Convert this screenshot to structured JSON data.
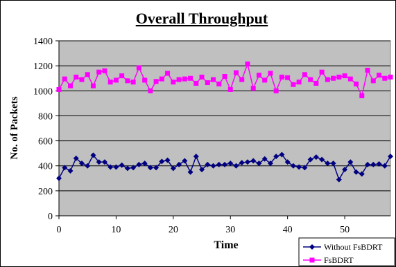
{
  "chart_data": {
    "type": "line",
    "title": "Overall Throughput",
    "xlabel": "Time",
    "ylabel": "No. of Packets",
    "xlim": [
      0,
      58
    ],
    "ylim": [
      0,
      1400
    ],
    "x_ticks": [
      0,
      10,
      20,
      30,
      40,
      50
    ],
    "y_ticks": [
      0,
      200,
      400,
      600,
      800,
      1000,
      1200,
      1400
    ],
    "grid": true,
    "legend_position": "bottom-right",
    "plot_background": "#c0c0c0",
    "series": [
      {
        "name": "Without FsBDRT",
        "color": "#000080",
        "marker": "diamond",
        "x": [
          0,
          1,
          2,
          3,
          4,
          5,
          6,
          7,
          8,
          9,
          10,
          11,
          12,
          13,
          14,
          15,
          16,
          17,
          18,
          19,
          20,
          21,
          22,
          23,
          24,
          25,
          26,
          27,
          28,
          29,
          30,
          31,
          32,
          33,
          34,
          35,
          36,
          37,
          38,
          39,
          40,
          41,
          42,
          43,
          44,
          45,
          46,
          47,
          48,
          49,
          50,
          51,
          52,
          53,
          54,
          55,
          56,
          57,
          58
        ],
        "values": [
          300,
          385,
          360,
          460,
          420,
          400,
          485,
          430,
          430,
          390,
          390,
          405,
          380,
          385,
          410,
          420,
          385,
          385,
          435,
          445,
          380,
          410,
          440,
          350,
          475,
          370,
          410,
          400,
          410,
          410,
          420,
          400,
          425,
          430,
          440,
          420,
          455,
          420,
          475,
          490,
          430,
          400,
          390,
          385,
          450,
          470,
          450,
          420,
          420,
          290,
          370,
          430,
          350,
          335,
          410,
          410,
          415,
          400,
          475
        ]
      },
      {
        "name": "FsBDRT",
        "color": "#ff00ff",
        "marker": "square",
        "x": [
          0,
          1,
          2,
          3,
          4,
          5,
          6,
          7,
          8,
          9,
          10,
          11,
          12,
          13,
          14,
          15,
          16,
          17,
          18,
          19,
          20,
          21,
          22,
          23,
          24,
          25,
          26,
          27,
          28,
          29,
          30,
          31,
          32,
          33,
          34,
          35,
          36,
          37,
          38,
          39,
          40,
          41,
          42,
          43,
          44,
          45,
          46,
          47,
          48,
          49,
          50,
          51,
          52,
          53,
          54,
          55,
          56,
          57,
          58
        ],
        "values": [
          1010,
          1095,
          1040,
          1110,
          1090,
          1130,
          1040,
          1150,
          1160,
          1070,
          1085,
          1120,
          1080,
          1070,
          1185,
          1085,
          1000,
          1075,
          1095,
          1140,
          1070,
          1090,
          1095,
          1100,
          1060,
          1110,
          1065,
          1090,
          1055,
          1115,
          1010,
          1145,
          1090,
          1215,
          1020,
          1125,
          1085,
          1140,
          1000,
          1110,
          1105,
          1050,
          1070,
          1130,
          1090,
          1060,
          1150,
          1090,
          1100,
          1110,
          1120,
          1095,
          1055,
          960,
          1165,
          1080,
          1125,
          1100,
          1110
        ]
      }
    ]
  }
}
